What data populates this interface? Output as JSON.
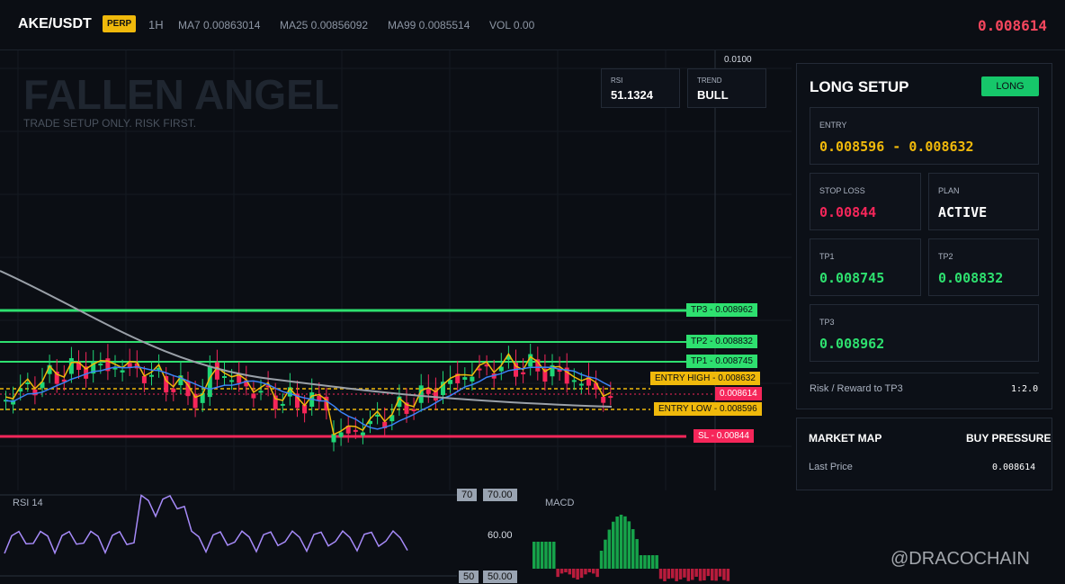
{
  "header": {
    "symbol": "AKE/USDT",
    "badge": "PERP",
    "interval": "1H",
    "ma7": "MA7 0.00863014",
    "ma25": "MA25 0.00856092",
    "ma99": "MA99 0.0085514",
    "vol": "VOL 0.00",
    "price": "0.008614"
  },
  "watermark": {
    "title": "FALLEN ANGEL",
    "subtitle": "TRADE SETUP ONLY. RISK FIRST."
  },
  "axis_top": "0.0100",
  "stats": [
    {
      "label": "RSI",
      "value": "51.1324"
    },
    {
      "label": "TREND",
      "value": "BULL"
    }
  ],
  "levels": {
    "tp3": "TP3 - 0.008962",
    "tp2": "TP2 - 0.008832",
    "tp1": "TP1 - 0.008745",
    "entry_high": "ENTRY HIGH - 0.008632",
    "price": "0.008614",
    "entry_low": "ENTRY LOW - 0.008596",
    "sl": "SL - 0.00844"
  },
  "setup": {
    "title": "LONG SETUP",
    "badge": "LONG",
    "entry": {
      "label": "ENTRY",
      "value": "0.008596 - 0.008632"
    },
    "stop": {
      "label": "STOP LOSS",
      "value": "0.00844"
    },
    "plan": {
      "label": "PLAN",
      "value": "ACTIVE"
    },
    "tp1": {
      "label": "TP1",
      "value": "0.008745"
    },
    "tp2": {
      "label": "TP2",
      "value": "0.008832"
    },
    "tp3": {
      "label": "TP3",
      "value": "0.008962"
    },
    "rr_label": "Risk / Reward to TP3",
    "rr": "1:2.0"
  },
  "market_map": {
    "title": "MARKET MAP",
    "status": "BUY PRESSURE",
    "last_price_label": "Last Price",
    "last_price": "0.008614"
  },
  "rsi": {
    "title": "RSI 14",
    "tick_70": "70.00",
    "tick_60": "60.00",
    "tick_50": "50.00",
    "badge_70": "70",
    "badge_50": "50"
  },
  "macd": {
    "title": "MACD"
  },
  "credit": "@DRACOCHAIN"
}
